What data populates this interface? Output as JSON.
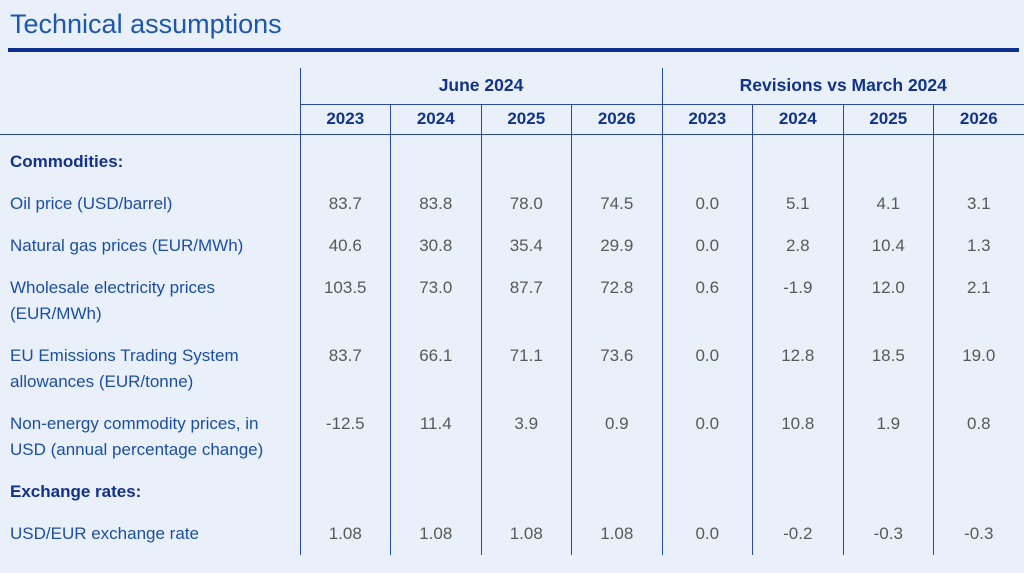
{
  "page": {
    "title": "Technical assumptions"
  },
  "colors": {
    "background": "#e9f0fa",
    "title_blue": "#1c57b2",
    "rule_blue": "#0d2f92",
    "header_blue": "#11338e",
    "label_blue": "#1c4ea7",
    "section_blue": "#12318c",
    "value_gray": "#595959",
    "border_blue": "#2a49a0"
  },
  "table": {
    "groups": [
      {
        "label": "June 2024",
        "years": [
          "2023",
          "2024",
          "2025",
          "2026"
        ]
      },
      {
        "label": "Revisions vs March 2024",
        "years": [
          "2023",
          "2024",
          "2025",
          "2026"
        ]
      }
    ],
    "rows": [
      {
        "label": "Commodities:",
        "type": "section",
        "values": []
      },
      {
        "label": "Oil price (USD/barrel)",
        "type": "data",
        "values": [
          "83.7",
          "83.8",
          "78.0",
          "74.5",
          "0.0",
          "5.1",
          "4.1",
          "3.1"
        ]
      },
      {
        "label": "Natural gas prices (EUR/MWh)",
        "type": "data",
        "values": [
          "40.6",
          "30.8",
          "35.4",
          "29.9",
          "0.0",
          "2.8",
          "10.4",
          "1.3"
        ]
      },
      {
        "label": "Wholesale electricity prices (EUR/MWh)",
        "type": "data",
        "values": [
          "103.5",
          "73.0",
          "87.7",
          "72.8",
          "0.6",
          "-1.9",
          "12.0",
          "2.1"
        ]
      },
      {
        "label": "EU Emissions Trading System allowances (EUR/tonne)",
        "type": "data",
        "values": [
          "83.7",
          "66.1",
          "71.1",
          "73.6",
          "0.0",
          "12.8",
          "18.5",
          "19.0"
        ]
      },
      {
        "label": "Non-energy commodity prices, in USD (annual percentage change)",
        "type": "data",
        "values": [
          "-12.5",
          "11.4",
          "3.9",
          "0.9",
          "0.0",
          "10.8",
          "1.9",
          "0.8"
        ]
      },
      {
        "label": "Exchange rates:",
        "type": "section",
        "values": []
      },
      {
        "label": "USD/EUR exchange rate",
        "type": "data",
        "values": [
          "1.08",
          "1.08",
          "1.08",
          "1.08",
          "0.0",
          "-0.2",
          "-0.3",
          "-0.3"
        ]
      }
    ]
  }
}
